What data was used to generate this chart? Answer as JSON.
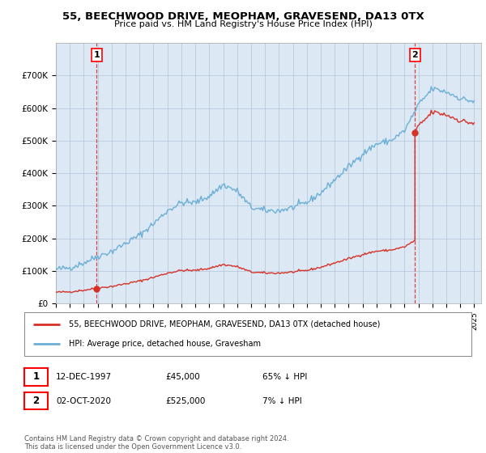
{
  "title": "55, BEECHWOOD DRIVE, MEOPHAM, GRAVESEND, DA13 0TX",
  "subtitle": "Price paid vs. HM Land Registry's House Price Index (HPI)",
  "ylim": [
    0,
    800000
  ],
  "yticks": [
    0,
    100000,
    200000,
    300000,
    400000,
    500000,
    600000,
    700000
  ],
  "ytick_labels": [
    "£0",
    "£100K",
    "£200K",
    "£300K",
    "£400K",
    "£500K",
    "£600K",
    "£700K"
  ],
  "sale1_date": 1997.917,
  "sale1_price": 45000,
  "sale2_date": 2020.75,
  "sale2_price": 525000,
  "hpi_color": "#6baed6",
  "price_color": "#d73027",
  "plot_bg_color": "#dce9f5",
  "legend_entry1": "55, BEECHWOOD DRIVE, MEOPHAM, GRAVESEND, DA13 0TX (detached house)",
  "legend_entry2": "HPI: Average price, detached house, Gravesham",
  "table_row1": [
    "1",
    "12-DEC-1997",
    "£45,000",
    "65% ↓ HPI"
  ],
  "table_row2": [
    "2",
    "02-OCT-2020",
    "£525,000",
    "7% ↓ HPI"
  ],
  "footer": "Contains HM Land Registry data © Crown copyright and database right 2024.\nThis data is licensed under the Open Government Licence v3.0.",
  "background_color": "#ffffff",
  "grid_color": "#b0c4d8",
  "hpi_anchors_x": [
    1995,
    1996,
    1997,
    1998,
    1999,
    2000,
    2001,
    2002,
    2003,
    2004,
    2005,
    2006,
    2007,
    2008,
    2009,
    2010,
    2011,
    2012,
    2013,
    2014,
    2015,
    2016,
    2017,
    2018,
    2019,
    2020,
    2021,
    2022,
    2023,
    2024,
    2025
  ],
  "hpi_anchors_y": [
    105000,
    110000,
    125000,
    145000,
    160000,
    185000,
    210000,
    245000,
    285000,
    310000,
    310000,
    330000,
    365000,
    345000,
    295000,
    285000,
    285000,
    295000,
    310000,
    340000,
    380000,
    420000,
    460000,
    490000,
    500000,
    530000,
    610000,
    660000,
    650000,
    630000,
    620000
  ]
}
